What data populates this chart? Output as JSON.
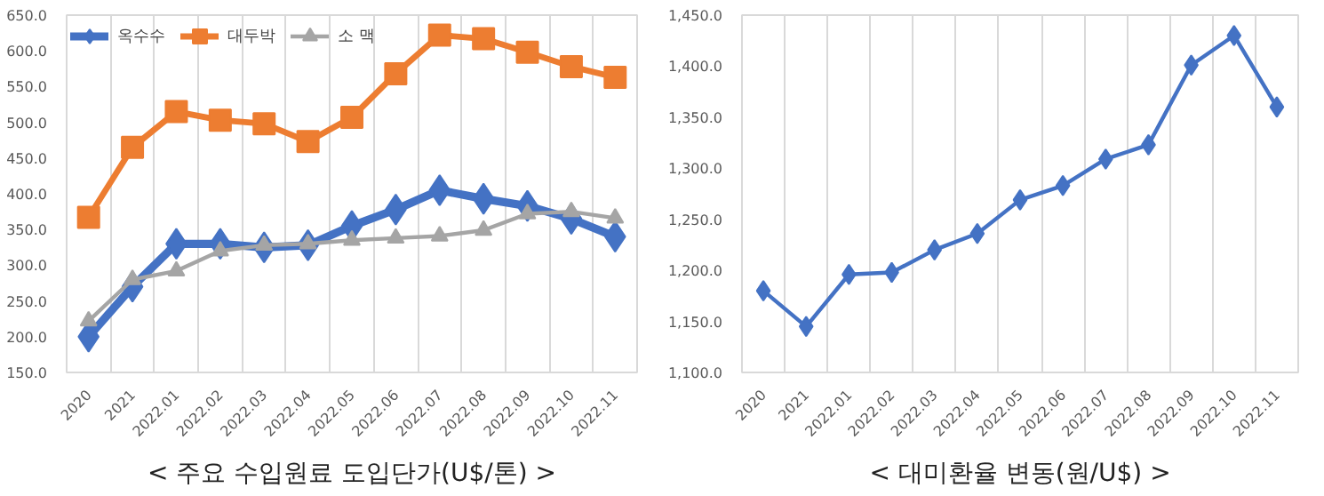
{
  "chart_data": [
    {
      "type": "line",
      "title": "< 주요 수입원료 도입단가(U$/톤) >",
      "categories": [
        "2020",
        "2021",
        "2022.01",
        "2022.02",
        "2022.03",
        "2022.04",
        "2022.05",
        "2022.06",
        "2022.07",
        "2022.08",
        "2022.09",
        "2022.10",
        "2022.11"
      ],
      "series": [
        {
          "name": "옥수수",
          "color": "#4472c4",
          "marker": "diamond",
          "values": [
            200,
            270,
            330,
            330,
            325,
            328,
            355,
            378,
            405,
            393,
            383,
            365,
            340
          ]
        },
        {
          "name": "대두박",
          "color": "#ed7d31",
          "marker": "square",
          "values": [
            367,
            465,
            515,
            503,
            498,
            473,
            507,
            568,
            622,
            617,
            598,
            578,
            563
          ]
        },
        {
          "name": "소 맥",
          "color": "#a5a5a5",
          "marker": "triangle",
          "values": [
            222,
            280,
            292,
            320,
            328,
            330,
            335,
            338,
            341,
            349,
            372,
            375,
            366
          ]
        }
      ],
      "ylim": [
        150,
        650
      ],
      "yticks": [
        {
          "value": 150,
          "label": "150.0"
        },
        {
          "value": 200,
          "label": "200.0"
        },
        {
          "value": 250,
          "label": "250.0"
        },
        {
          "value": 300,
          "label": "300.0"
        },
        {
          "value": 350,
          "label": "350.0"
        },
        {
          "value": 400,
          "label": "400.0"
        },
        {
          "value": 450,
          "label": "450.0"
        },
        {
          "value": 500,
          "label": "500.0"
        },
        {
          "value": 550,
          "label": "550.0"
        },
        {
          "value": 600,
          "label": "600.0"
        },
        {
          "value": 650,
          "label": "650.0"
        }
      ],
      "grid": "x",
      "legend": "top",
      "line_style": "solid"
    },
    {
      "type": "line",
      "title": "< 대미환율 변동(원/U$) >",
      "categories": [
        "2020",
        "2021",
        "2022.01",
        "2022.02",
        "2022.03",
        "2022.04",
        "2022.05",
        "2022.06",
        "2022.07",
        "2022.08",
        "2022.09",
        "2022.10",
        "2022.11"
      ],
      "series": [
        {
          "color": "#4472c4",
          "marker": "diamond",
          "values": [
            1180,
            1145,
            1196,
            1198,
            1220,
            1236,
            1269,
            1283,
            1309,
            1323,
            1401,
            1430,
            1360
          ]
        }
      ],
      "ylim": [
        1100,
        1450
      ],
      "yticks": [
        {
          "value": 1100,
          "label": "1,100.0"
        },
        {
          "value": 1150,
          "label": "1,150.0"
        },
        {
          "value": 1200,
          "label": "1,200.0"
        },
        {
          "value": 1250,
          "label": "1,250.0"
        },
        {
          "value": 1300,
          "label": "1,300.0"
        },
        {
          "value": 1350,
          "label": "1,350.0"
        },
        {
          "value": 1400,
          "label": "1,400.0"
        },
        {
          "value": 1450,
          "label": "1,450.0"
        }
      ],
      "grid": "x",
      "legend": false,
      "line_style": "solid"
    }
  ]
}
